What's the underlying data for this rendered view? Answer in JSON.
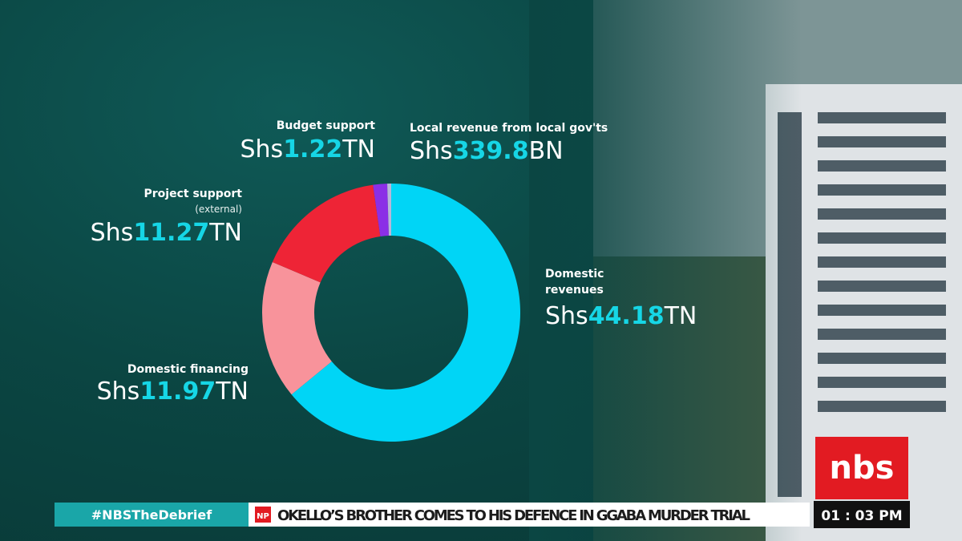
{
  "chart_data": {
    "type": "pie",
    "categories": [
      "Domestic revenues",
      "Domestic financing",
      "Project support",
      "Budget support",
      "Local revenue from local gov'ts"
    ],
    "values": [
      44.18,
      11.97,
      11.27,
      1.22,
      0.3398
    ],
    "value_labels": [
      "Shs44.18TN",
      "Shs11.97TN",
      "Shs11.27TN",
      "Shs1.22TN",
      "Shs339.8BN"
    ],
    "colors": [
      "#00d5f6",
      "#f8939b",
      "#ee2436",
      "#8b2fe6",
      "#b9b6d8"
    ],
    "annotations": [
      "(external)"
    ]
  },
  "ticker": {
    "hashtag": "#NBSTheDebrief",
    "badge": "NP",
    "headline": "OKELLO’S BROTHER COMES TO HIS DEFENCE IN GGABA MURDER TRIAL",
    "time": "01 : 03 PM",
    "logo": "nbs"
  }
}
